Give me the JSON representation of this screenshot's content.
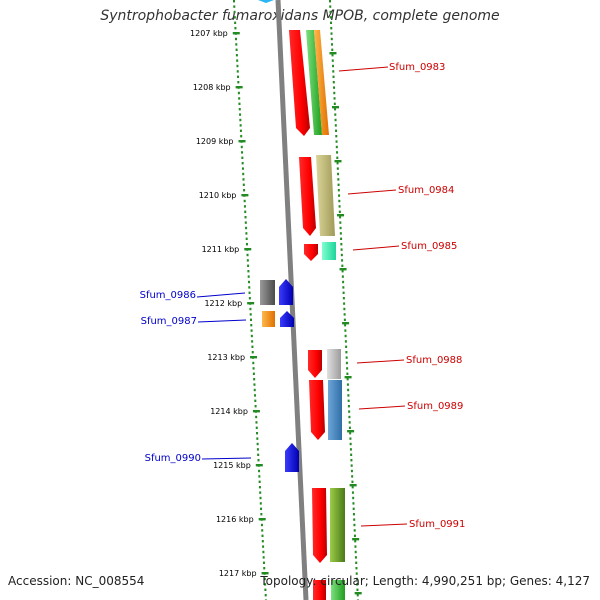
{
  "title": "Syntrophobacter fumaroxidans MPOB, complete genome",
  "footer": {
    "accession": "Accession: NC_008554",
    "summary": "Topology: circular; Length: 4,990,251 bp; Genes: 4,127"
  },
  "ticks": [
    "1207 kbp",
    "1208 kbp",
    "1209 kbp",
    "1210 kbp",
    "1211 kbp",
    "1212 kbp",
    "1213 kbp",
    "1214 kbp",
    "1215 kbp",
    "1216 kbp",
    "1217 kbp"
  ],
  "colors": {
    "backbone": "#808080",
    "tick_dots": "#228b22",
    "forward_label": "#cc0000",
    "reverse_label": "#0000cc"
  },
  "labels": {
    "forward": [
      "Sfum_0983",
      "Sfum_0984",
      "Sfum_0985",
      "Sfum_0988",
      "Sfum_0989",
      "Sfum_0991"
    ],
    "reverse": [
      "Sfum_0986",
      "Sfum_0987",
      "Sfum_0990"
    ]
  }
}
